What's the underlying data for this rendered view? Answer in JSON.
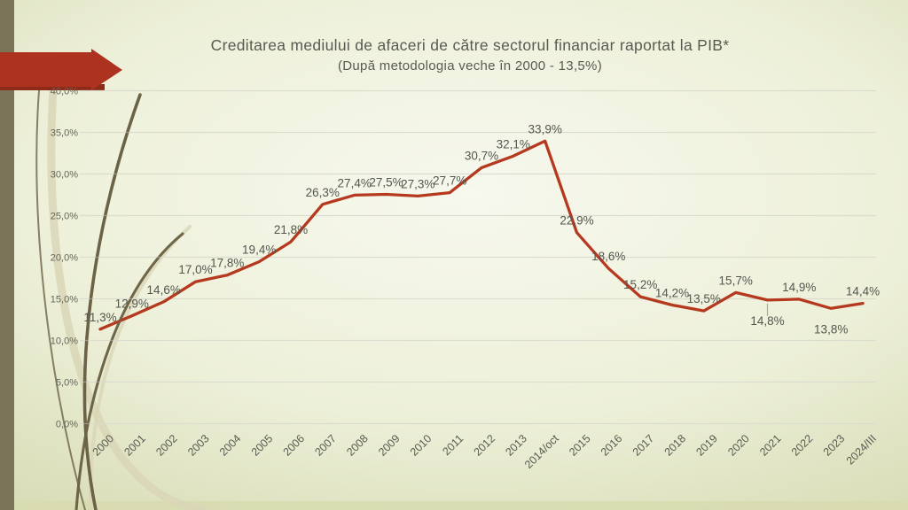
{
  "slide": {
    "title": "Creditarea mediului de afaceri de către sectorul financiar raportat la PIB*",
    "subtitle": "(După metodologia veche în 2000 - 13,5%)"
  },
  "chart_data": {
    "type": "line",
    "title": "Creditarea mediului de afaceri de către sectorul financiar raportat la PIB*",
    "subtitle": "(După metodologia veche în 2000 - 13,5%)",
    "categories": [
      "2000",
      "2001",
      "2002",
      "2003",
      "2004",
      "2005",
      "2006",
      "2007",
      "2008",
      "2009",
      "2010",
      "2011",
      "2012",
      "2013",
      "2014/oct",
      "2015",
      "2016",
      "2017",
      "2018",
      "2019",
      "2020",
      "2021",
      "2022",
      "2023",
      "2024/III"
    ],
    "values": [
      11.3,
      12.9,
      14.6,
      17.0,
      17.8,
      19.4,
      21.8,
      26.3,
      27.4,
      27.5,
      27.3,
      27.7,
      30.7,
      32.1,
      33.9,
      22.9,
      18.6,
      15.2,
      14.2,
      13.5,
      15.7,
      14.8,
      14.9,
      13.8,
      14.4
    ],
    "data_labels": [
      "11,3%",
      "12,9%",
      "14,6%",
      "17,0%",
      "17,8%",
      "19,4%",
      "21,8%",
      "26,3%",
      "27,4%",
      "27,5%",
      "27,3%",
      "27,7%",
      "30,7%",
      "32,1%",
      "33,9%",
      "22,9%",
      "18,6%",
      "15,2%",
      "14,2%",
      "13,5%",
      "15,7%",
      "14,8%",
      "14,9%",
      "13,8%",
      "14,4%"
    ],
    "labels_below": [
      "2021",
      "2023"
    ],
    "leader_line_categories": [
      "2021"
    ],
    "xlabel": "",
    "ylabel": "",
    "ylim": [
      0,
      40
    ],
    "y_tick_step": 5,
    "y_ticks": [
      "0,0%",
      "5,0%",
      "10,0%",
      "15,0%",
      "20,0%",
      "25,0%",
      "30,0%",
      "35,0%",
      "40,0%"
    ],
    "grid": true,
    "legend": "none",
    "decimal_style": "comma",
    "x_label_rotation_deg": -45
  },
  "colors": {
    "background_center": "#f7f8ee",
    "background_edge": "#dce0bc",
    "accent_red": "#ae3220",
    "accent_red_dark": "#8e2b18",
    "left_bar_olive": "#7b7357",
    "curve_dark_olive": "#6b6347",
    "curve_light_beige": "#d9d6b7",
    "bottom_strip": "#d8dcb0",
    "gridline": "#d9dccd",
    "series_line": "#b5391f",
    "text_gray": "#595b51",
    "tick_gray": "#64655c"
  }
}
